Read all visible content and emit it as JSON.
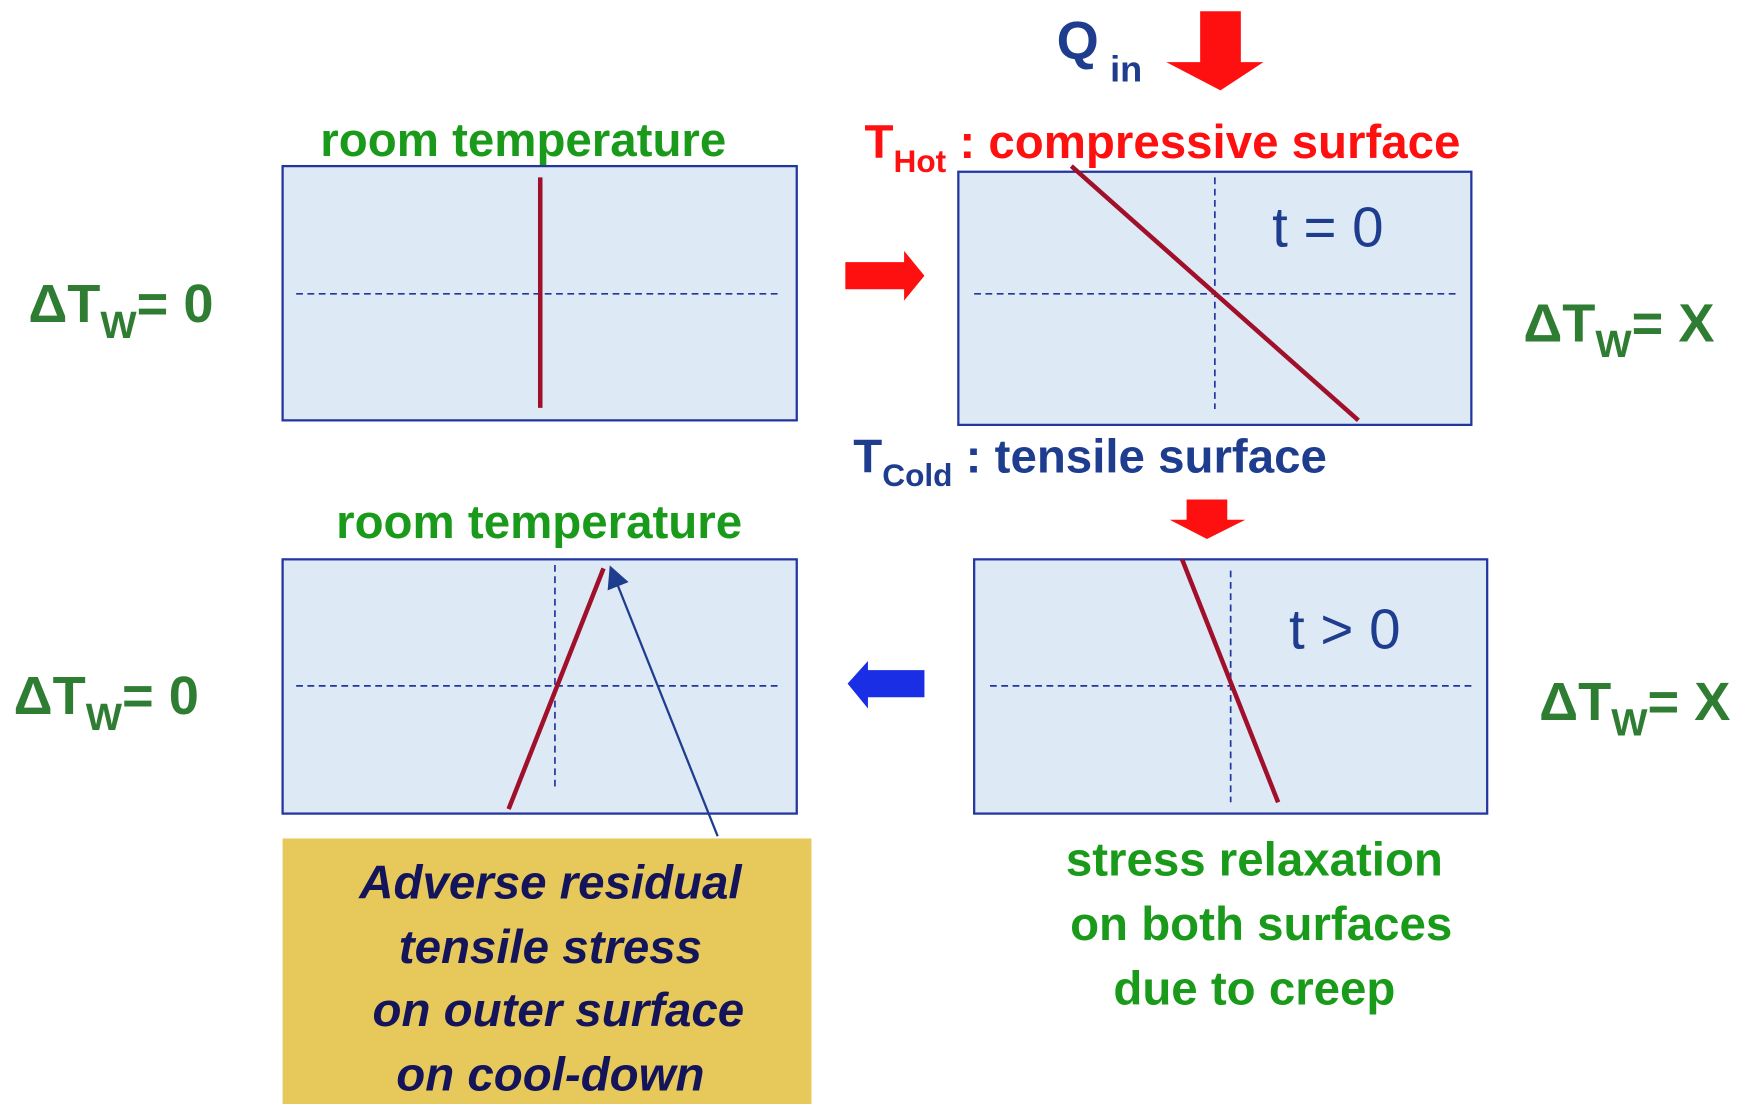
{
  "heat_input": {
    "symbol": "Q",
    "sub": "in"
  },
  "top_left": {
    "title": "room temperature",
    "delta_t": {
      "symbol": "ΔT",
      "sub": "W",
      "value": "= 0"
    }
  },
  "top_right": {
    "hot_label": {
      "symbol": "T",
      "sub": "Hot",
      "text": " : compressive surface"
    },
    "time": "t = 0",
    "cold_label": {
      "symbol": "T",
      "sub": "Cold",
      "text": " : tensile surface"
    },
    "delta_t": {
      "symbol": "ΔT",
      "sub": "W",
      "value": "= X"
    }
  },
  "bottom_right": {
    "time": "t > 0",
    "caption": [
      "stress relaxation",
      "on both surfaces",
      "due to creep"
    ],
    "delta_t": {
      "symbol": "ΔT",
      "sub": "W",
      "value": "= X"
    }
  },
  "bottom_left": {
    "title": "room temperature",
    "delta_t": {
      "symbol": "ΔT",
      "sub": "W",
      "value": "= 0"
    },
    "callout": [
      "Adverse residual",
      "tensile stress",
      "on outer surface",
      "on cool-down"
    ]
  }
}
